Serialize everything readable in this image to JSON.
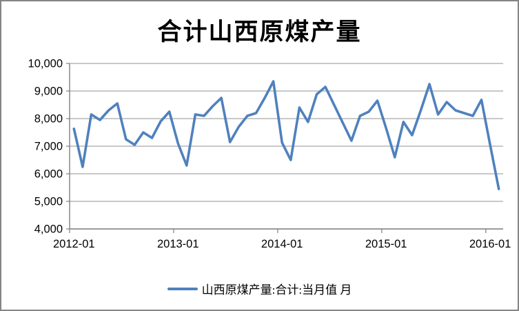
{
  "chart_data": {
    "type": "line",
    "title": "合计山西原煤产量",
    "legend": "山西原煤产量:合计:当月值 月",
    "unit_note": "",
    "x": [
      "2012-01",
      "2012-02",
      "2012-03",
      "2012-04",
      "2012-05",
      "2012-06",
      "2012-07",
      "2012-08",
      "2012-09",
      "2012-10",
      "2012-11",
      "2012-12",
      "2013-01",
      "2013-02",
      "2013-03",
      "2013-04",
      "2013-05",
      "2013-06",
      "2013-07",
      "2013-08",
      "2013-09",
      "2013-10",
      "2013-11",
      "2013-12",
      "2014-01",
      "2014-02",
      "2014-03",
      "2014-04",
      "2014-05",
      "2014-06",
      "2014-07",
      "2014-08",
      "2014-09",
      "2014-10",
      "2014-11",
      "2014-12",
      "2015-01",
      "2015-02",
      "2015-03",
      "2015-04",
      "2015-05",
      "2015-06",
      "2015-07",
      "2015-08",
      "2015-09",
      "2015-10",
      "2015-11",
      "2015-12",
      "2016-01",
      "2016-02"
    ],
    "series": [
      {
        "name": "山西原煤产量:合计:当月值 月",
        "values": [
          7630,
          6250,
          8150,
          7950,
          8300,
          8550,
          7250,
          7050,
          7500,
          7300,
          7900,
          8250,
          7100,
          6300,
          8150,
          8100,
          8450,
          8750,
          7150,
          7700,
          8100,
          8200,
          8750,
          9350,
          7130,
          6500,
          8400,
          7880,
          8880,
          9150,
          8500,
          7850,
          7200,
          8100,
          8250,
          8650,
          7650,
          6600,
          7880,
          7400,
          8300,
          9250,
          8150,
          8600,
          8300,
          8200,
          8100,
          8680,
          7050,
          5450
        ]
      }
    ],
    "ylim": [
      4000,
      10000
    ],
    "ytick_step": 1000,
    "ytick_labels": [
      "10,000",
      "9,000",
      "8,000",
      "7,000",
      "6,000",
      "5,000",
      "4,000"
    ],
    "xtick_labels": [
      "2012-01",
      "2013-01",
      "2014-01",
      "2015-01",
      "2016-01"
    ],
    "xtick_interval_months": 12,
    "grid": "horizontal",
    "legend_position": "bottom",
    "colors": {
      "line": "#4F81BD",
      "grid": "#A6A6A6",
      "axis": "#808080",
      "text": "#000000",
      "border": "#848484",
      "background": "#FFFFFF"
    }
  }
}
